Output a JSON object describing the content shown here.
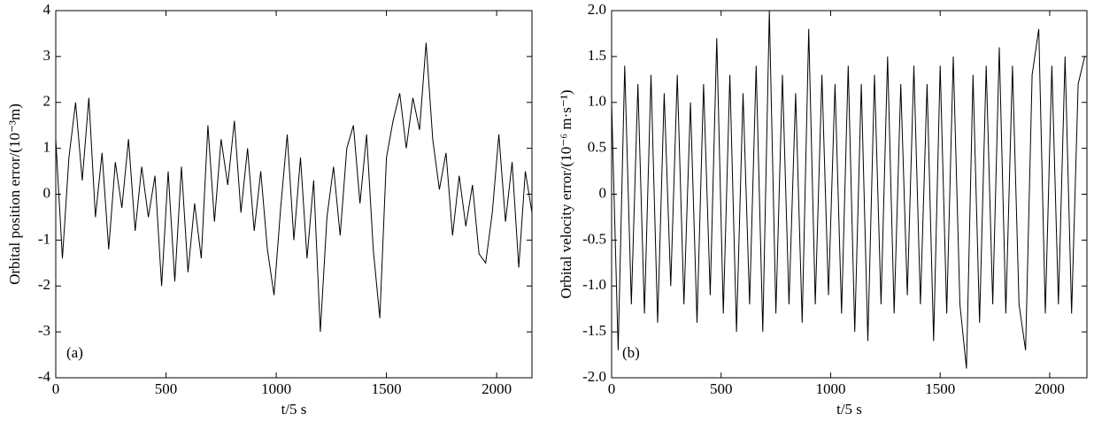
{
  "chart_data": [
    {
      "type": "line",
      "ylabel": "Orbital position error/(10⁻³m)",
      "xlabel": "t/5 s",
      "annotation": "(a)",
      "color": "#000000",
      "xlim": [
        0,
        2160
      ],
      "ylim": [
        -4,
        4
      ],
      "xticks": [
        0,
        500,
        1000,
        1500,
        2000
      ],
      "yticks": [
        -4,
        -3,
        -2,
        -1,
        0,
        1,
        2,
        3,
        4
      ],
      "x": [
        0,
        30,
        60,
        90,
        120,
        150,
        180,
        210,
        240,
        270,
        300,
        330,
        360,
        390,
        420,
        450,
        480,
        510,
        540,
        570,
        600,
        630,
        660,
        690,
        720,
        750,
        780,
        810,
        840,
        870,
        900,
        930,
        960,
        990,
        1020,
        1050,
        1080,
        1110,
        1140,
        1170,
        1200,
        1230,
        1260,
        1290,
        1320,
        1350,
        1380,
        1410,
        1440,
        1470,
        1500,
        1530,
        1560,
        1590,
        1620,
        1650,
        1680,
        1710,
        1740,
        1770,
        1800,
        1830,
        1860,
        1890,
        1920,
        1950,
        1980,
        2010,
        2040,
        2070,
        2100,
        2130,
        2160
      ],
      "values": [
        1.2,
        -1.4,
        0.8,
        2.0,
        0.3,
        2.1,
        -0.5,
        0.9,
        -1.2,
        0.7,
        -0.3,
        1.2,
        -0.8,
        0.6,
        -0.5,
        0.4,
        -2.0,
        0.5,
        -1.9,
        0.6,
        -1.7,
        -0.2,
        -1.4,
        1.5,
        -0.6,
        1.2,
        0.2,
        1.6,
        -0.4,
        1.0,
        -0.8,
        0.5,
        -1.2,
        -2.2,
        -0.3,
        1.3,
        -1.0,
        0.8,
        -1.4,
        0.3,
        -3.0,
        -0.5,
        0.6,
        -0.9,
        1.0,
        1.5,
        -0.2,
        1.3,
        -1.2,
        -2.7,
        0.8,
        1.6,
        2.2,
        1.0,
        2.1,
        1.4,
        3.3,
        1.2,
        0.1,
        0.9,
        -0.9,
        0.4,
        -0.7,
        0.2,
        -1.3,
        -1.5,
        -0.4,
        1.3,
        -0.6,
        0.7,
        -1.6,
        0.5,
        -0.4
      ]
    },
    {
      "type": "line",
      "ylabel": "Orbital velocity error/(10⁻⁶ m·s⁻¹)",
      "xlabel": "t/5 s",
      "annotation": "(b)",
      "color": "#000000",
      "xlim": [
        0,
        2170
      ],
      "ylim": [
        -2,
        2
      ],
      "xticks": [
        0,
        500,
        1000,
        1500,
        2000
      ],
      "yticks": [
        {
          "value": -2,
          "label": "-2.0"
        },
        {
          "value": -1.5,
          "label": "-1.5"
        },
        {
          "value": -1,
          "label": "-1.0"
        },
        {
          "value": -0.5,
          "label": "-0.5"
        },
        0,
        {
          "value": 0.5,
          "label": "0.5"
        },
        {
          "value": 1,
          "label": "1.0"
        },
        {
          "value": 1.5,
          "label": "1.5"
        },
        {
          "value": 2,
          "label": "2.0"
        }
      ],
      "x": [
        0,
        30,
        60,
        90,
        120,
        150,
        180,
        210,
        240,
        270,
        300,
        330,
        360,
        390,
        420,
        450,
        480,
        510,
        540,
        570,
        600,
        630,
        660,
        690,
        720,
        750,
        780,
        810,
        840,
        870,
        900,
        930,
        960,
        990,
        1020,
        1050,
        1080,
        1110,
        1140,
        1170,
        1200,
        1230,
        1260,
        1290,
        1320,
        1350,
        1380,
        1410,
        1440,
        1470,
        1500,
        1530,
        1560,
        1590,
        1620,
        1650,
        1680,
        1710,
        1740,
        1770,
        1800,
        1830,
        1860,
        1890,
        1920,
        1950,
        1980,
        2010,
        2040,
        2070,
        2100,
        2130,
        2160
      ],
      "values": [
        1.0,
        -1.7,
        1.4,
        -1.2,
        1.2,
        -1.3,
        1.3,
        -1.4,
        1.1,
        -1.0,
        1.3,
        -1.2,
        1.0,
        -1.4,
        1.2,
        -1.1,
        1.7,
        -1.3,
        1.3,
        -1.5,
        1.1,
        -1.2,
        1.4,
        -1.5,
        2.0,
        -1.3,
        1.3,
        -1.2,
        1.1,
        -1.4,
        1.8,
        -1.2,
        1.3,
        -1.1,
        1.2,
        -1.3,
        1.4,
        -1.5,
        1.2,
        -1.6,
        1.3,
        -1.2,
        1.5,
        -1.3,
        1.2,
        -1.1,
        1.4,
        -1.2,
        1.2,
        -1.6,
        1.4,
        -1.3,
        1.5,
        -1.2,
        -1.9,
        1.3,
        -1.4,
        1.4,
        -1.2,
        1.6,
        -1.3,
        1.4,
        -1.2,
        -1.7,
        1.3,
        1.8,
        -1.3,
        1.4,
        -1.2,
        1.5,
        -1.3,
        1.2,
        1.5
      ]
    }
  ]
}
